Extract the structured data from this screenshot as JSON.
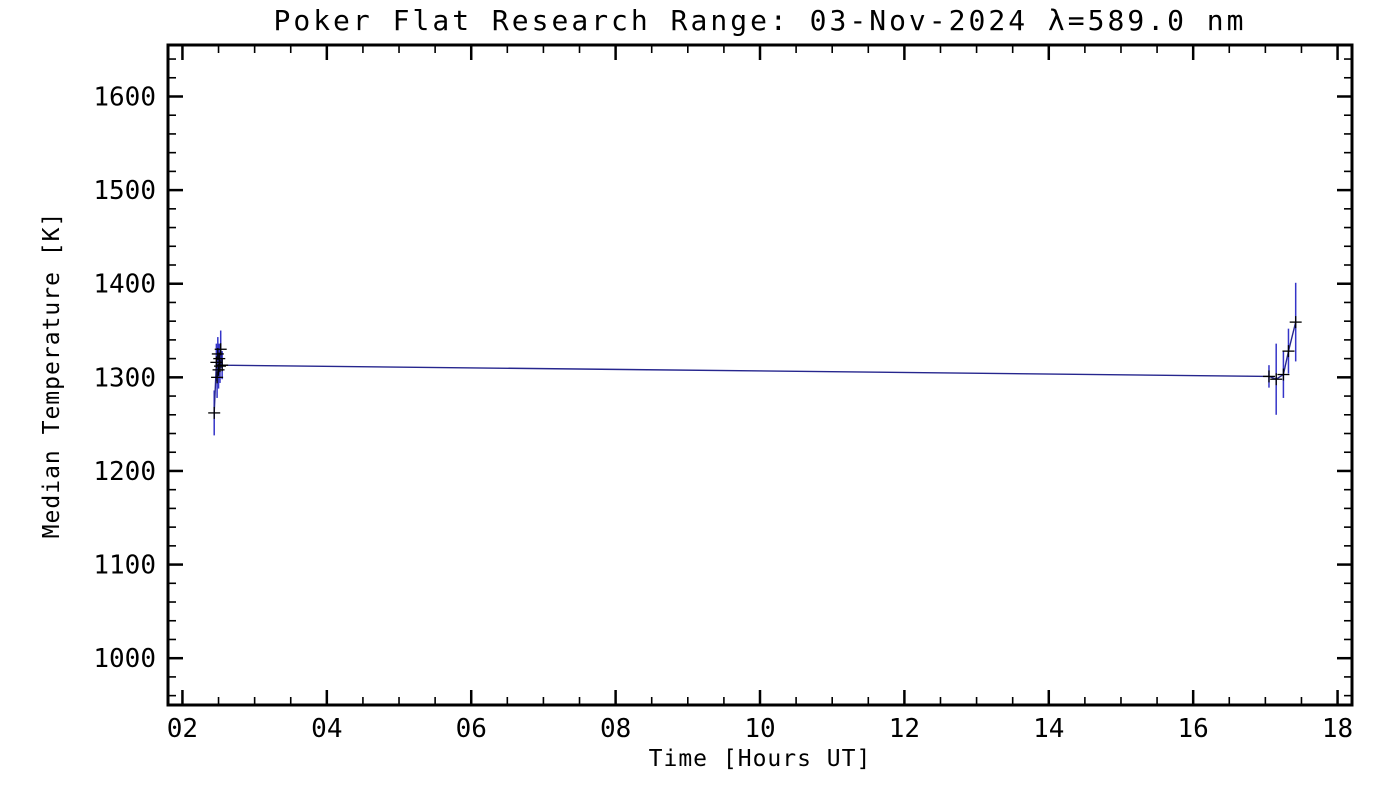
{
  "chart_data": {
    "type": "line",
    "title": "Poker Flat Research Range: 03-Nov-2024 λ=589.0 nm",
    "xlabel": "Time [Hours UT]",
    "ylabel": "Median Temperature [K]",
    "xlim": [
      1.8,
      18.2
    ],
    "ylim": [
      950,
      1655
    ],
    "xticks": [
      2,
      4,
      6,
      8,
      10,
      12,
      14,
      16,
      18
    ],
    "xtick_labels": [
      "02",
      "04",
      "06",
      "08",
      "10",
      "12",
      "14",
      "16",
      "18"
    ],
    "yticks": [
      1000,
      1100,
      1200,
      1300,
      1400,
      1500,
      1600
    ],
    "ytick_labels": [
      "1000",
      "1100",
      "1200",
      "1300",
      "1400",
      "1500",
      "1600"
    ],
    "x_minor_step": 0.5,
    "y_minor_step": 20,
    "grid": false,
    "legend": "none",
    "colors": {
      "axis": "#000000",
      "line": "#26268e",
      "error_bar": "#3434c8",
      "marker": "#000000",
      "background": "#ffffff"
    },
    "series": [
      {
        "name": "median-temperature",
        "marker": "plus",
        "points": [
          {
            "t": 2.44,
            "T": 1262,
            "err": 24
          },
          {
            "t": 2.47,
            "T": 1316,
            "err": 20
          },
          {
            "t": 2.48,
            "T": 1300,
            "err": 22
          },
          {
            "t": 2.49,
            "T": 1325,
            "err": 18
          },
          {
            "t": 2.5,
            "T": 1308,
            "err": 20
          },
          {
            "t": 2.51,
            "T": 1320,
            "err": 16
          },
          {
            "t": 2.52,
            "T": 1312,
            "err": 18
          },
          {
            "t": 2.53,
            "T": 1330,
            "err": 20
          },
          {
            "t": 2.55,
            "T": 1313,
            "err": 15
          },
          {
            "t": 17.05,
            "T": 1301,
            "err": 12
          },
          {
            "t": 17.15,
            "T": 1298,
            "err": 38
          },
          {
            "t": 17.25,
            "T": 1303,
            "err": 25
          },
          {
            "t": 17.32,
            "T": 1328,
            "err": 24
          },
          {
            "t": 17.42,
            "T": 1359,
            "err": 42
          }
        ]
      }
    ]
  }
}
